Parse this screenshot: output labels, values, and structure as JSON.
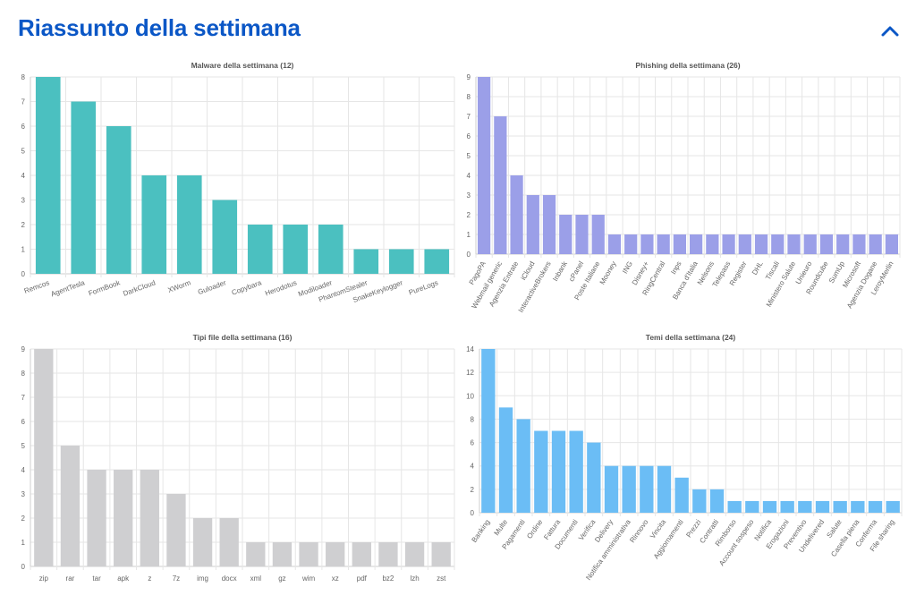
{
  "header": {
    "title": "Riassunto della settimana",
    "collapse_icon": "chevron-up-icon",
    "accent_color": "#0b57c6"
  },
  "chart_data": [
    {
      "id": "malware",
      "type": "bar",
      "title": "Malware della settimana (12)",
      "color": "#4bc0c0",
      "ylim": [
        0,
        8
      ],
      "yticks": [
        0,
        1,
        2,
        3,
        4,
        5,
        6,
        7,
        8
      ],
      "categories": [
        "Remcos",
        "AgentTesla",
        "FormBook",
        "DarkCloud",
        "XWorm",
        "Guloader",
        "Copybara",
        "Herodotus",
        "Modiloader",
        "PhantomStealer",
        "SnakeKeylogger",
        "PureLogs"
      ],
      "values": [
        8,
        7,
        6,
        4,
        4,
        3,
        2,
        2,
        2,
        1,
        1,
        1
      ],
      "grid": true
    },
    {
      "id": "phishing",
      "type": "bar",
      "title": "Phishing della settimana (26)",
      "color": "#9b9fe8",
      "ylim": [
        0,
        9
      ],
      "yticks": [
        0,
        1,
        2,
        3,
        4,
        5,
        6,
        7,
        8,
        9
      ],
      "categories": [
        "PagoPA",
        "Webmail generic",
        "Agenzia Entrate",
        "iCloud",
        "InteractiveBrokers",
        "Inbank",
        "cPanel",
        "Poste Italiane",
        "Mooney",
        "ING",
        "Disney+",
        "RingCentral",
        "Inps",
        "Banca d'Italia",
        "Nelsons",
        "Telepass",
        "Register",
        "DHL",
        "Tiscali",
        "Ministero Salute",
        "Unieuro",
        "Roundcube",
        "SumUp",
        "Microsoft",
        "Agenzia Dogane",
        "LeroyMerlin"
      ],
      "values": [
        9,
        7,
        4,
        3,
        3,
        2,
        2,
        2,
        1,
        1,
        1,
        1,
        1,
        1,
        1,
        1,
        1,
        1,
        1,
        1,
        1,
        1,
        1,
        1,
        1,
        1
      ],
      "grid": true
    },
    {
      "id": "filetypes",
      "type": "bar",
      "title": "Tipi file della settimana (16)",
      "color": "#cfcfd1",
      "ylim": [
        0,
        9
      ],
      "yticks": [
        0,
        1,
        2,
        3,
        4,
        5,
        6,
        7,
        8,
        9
      ],
      "categories": [
        "zip",
        "rar",
        "tar",
        "apk",
        "z",
        "7z",
        "img",
        "docx",
        "xml",
        "gz",
        "wim",
        "xz",
        "pdf",
        "bz2",
        "lzh",
        "zst"
      ],
      "values": [
        9,
        5,
        4,
        4,
        4,
        3,
        2,
        2,
        1,
        1,
        1,
        1,
        1,
        1,
        1,
        1
      ],
      "grid": true
    },
    {
      "id": "topics",
      "type": "bar",
      "title": "Temi della settimana (24)",
      "color": "#6bbdf5",
      "ylim": [
        0,
        14
      ],
      "yticks": [
        0,
        2,
        4,
        6,
        8,
        10,
        12,
        14
      ],
      "categories": [
        "Banking",
        "Multe",
        "Pagamenti",
        "Ordine",
        "Fattura",
        "Documenti",
        "Verifica",
        "Delivery",
        "Notifica amministrativa",
        "Rinnovo",
        "Vincita",
        "Aggiornamenti",
        "Prezzi",
        "Contratti",
        "Rimborso",
        "Account sospeso",
        "Notifica",
        "Erogazioni",
        "Preventivo",
        "Undelivered",
        "Salute",
        "Casella piena",
        "Conferma",
        "File sharing"
      ],
      "values": [
        14,
        9,
        8,
        7,
        7,
        7,
        6,
        4,
        4,
        4,
        4,
        3,
        2,
        2,
        1,
        1,
        1,
        1,
        1,
        1,
        1,
        1,
        1,
        1
      ],
      "grid": true
    }
  ]
}
